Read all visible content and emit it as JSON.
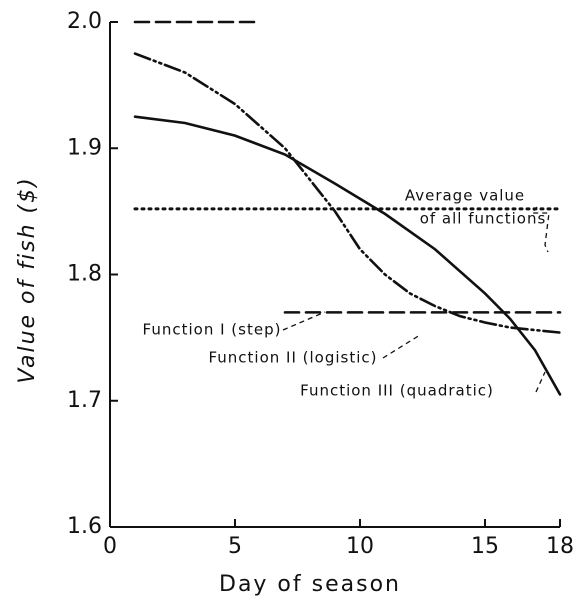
{
  "chart_data": {
    "type": "line",
    "xlabel": "Day of season",
    "ylabel": "Value of fish ($)",
    "xlim": [
      0,
      18
    ],
    "xticks": [
      0,
      5,
      10,
      15,
      18
    ],
    "ylim": [
      1.6,
      2.0
    ],
    "yticks": [
      1.6,
      1.7,
      1.8,
      1.9,
      {
        "value": 2.0,
        "label": "2.0"
      }
    ],
    "series": [
      {
        "name": "Function I (step)",
        "color": "#111111",
        "style": "dashed",
        "x": [
          1,
          6,
          6.5,
          7,
          18
        ],
        "values": [
          2.0,
          2.0,
          null,
          1.77,
          1.77
        ]
      },
      {
        "name": "Function II (logistic)",
        "color": "#111111",
        "style": "dashdotdot",
        "x": [
          1,
          3,
          5,
          7,
          8,
          9,
          10,
          11,
          12,
          13,
          14,
          15,
          16,
          18
        ],
        "values": [
          1.975,
          1.96,
          1.935,
          1.9,
          1.875,
          1.85,
          1.82,
          1.8,
          1.785,
          1.775,
          1.767,
          1.762,
          1.758,
          1.754
        ]
      },
      {
        "name": "Function III (quadratic)",
        "color": "#111111",
        "style": "solid",
        "x": [
          1,
          3,
          5,
          7,
          9,
          11,
          13,
          15,
          16,
          17,
          18
        ],
        "values": [
          1.925,
          1.92,
          1.91,
          1.895,
          1.872,
          1.848,
          1.82,
          1.785,
          1.765,
          1.74,
          1.705
        ]
      },
      {
        "name": "Average value of all functions",
        "color": "#111111",
        "style": "dotted",
        "x": [
          1,
          18
        ],
        "values": [
          1.852,
          1.852
        ]
      }
    ],
    "annotations": [
      "Average value",
      "of all functions",
      "Function I (step)",
      "Function II (logistic)",
      "Function III (quadratic)"
    ]
  }
}
